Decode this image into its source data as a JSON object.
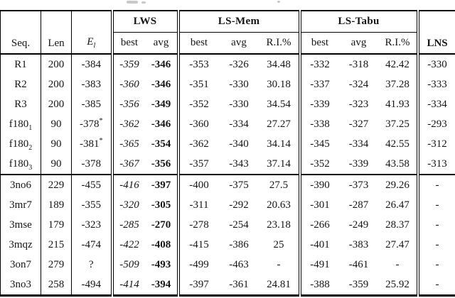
{
  "table": {
    "header": {
      "seq": "Seq.",
      "len": "Len",
      "energy_base": "E",
      "energy_sub": "l",
      "group_lws": "LWS",
      "group_ls_mem": "LS-Mem",
      "group_ls_tabu": "LS-Tabu",
      "lns": "LNS",
      "best": "best",
      "avg": "avg",
      "ri": "R.I.%"
    },
    "section_break_index": 6,
    "rows": [
      {
        "seq": "R1",
        "seq_sub": "",
        "len": "200",
        "el": "-384",
        "el_sup": "",
        "lws_best": "-359",
        "lws_avg": "-346",
        "mem_best": "-353",
        "mem_avg": "-326",
        "mem_ri": "34.48",
        "tabu_best": "-332",
        "tabu_avg": "-318",
        "tabu_ri": "42.42",
        "lns": "-330"
      },
      {
        "seq": "R2",
        "seq_sub": "",
        "len": "200",
        "el": "-383",
        "el_sup": "",
        "lws_best": "-360",
        "lws_avg": "-346",
        "mem_best": "-351",
        "mem_avg": "-330",
        "mem_ri": "30.18",
        "tabu_best": "-337",
        "tabu_avg": "-324",
        "tabu_ri": "37.28",
        "lns": "-333"
      },
      {
        "seq": "R3",
        "seq_sub": "",
        "len": "200",
        "el": "-385",
        "el_sup": "",
        "lws_best": "-356",
        "lws_avg": "-349",
        "mem_best": "-352",
        "mem_avg": "-330",
        "mem_ri": "34.54",
        "tabu_best": "-339",
        "tabu_avg": "-323",
        "tabu_ri": "41.93",
        "lns": "-334"
      },
      {
        "seq": "f180",
        "seq_sub": "1",
        "len": "90",
        "el": "-378",
        "el_sup": "*",
        "lws_best": "-362",
        "lws_avg": "-346",
        "mem_best": "-360",
        "mem_avg": "-334",
        "mem_ri": "27.27",
        "tabu_best": "-338",
        "tabu_avg": "-327",
        "tabu_ri": "37.25",
        "lns": "-293"
      },
      {
        "seq": "f180",
        "seq_sub": "2",
        "len": "90",
        "el": "-381",
        "el_sup": "*",
        "lws_best": "-365",
        "lws_avg": "-354",
        "mem_best": "-362",
        "mem_avg": "-340",
        "mem_ri": "34.14",
        "tabu_best": "-345",
        "tabu_avg": "-334",
        "tabu_ri": "42.55",
        "lns": "-312"
      },
      {
        "seq": "f180",
        "seq_sub": "3",
        "len": "90",
        "el": "-378",
        "el_sup": "",
        "lws_best": "-367",
        "lws_avg": "-356",
        "mem_best": "-357",
        "mem_avg": "-343",
        "mem_ri": "37.14",
        "tabu_best": "-352",
        "tabu_avg": "-339",
        "tabu_ri": "43.58",
        "lns": "-313"
      },
      {
        "seq": "3no6",
        "seq_sub": "",
        "len": "229",
        "el": "-455",
        "el_sup": "",
        "lws_best": "-416",
        "lws_avg": "-397",
        "mem_best": "-400",
        "mem_avg": "-375",
        "mem_ri": "27.5",
        "tabu_best": "-390",
        "tabu_avg": "-373",
        "tabu_ri": "29.26",
        "lns": "-"
      },
      {
        "seq": "3mr7",
        "seq_sub": "",
        "len": "189",
        "el": "-355",
        "el_sup": "",
        "lws_best": "-320",
        "lws_avg": "-305",
        "mem_best": "-311",
        "mem_avg": "-292",
        "mem_ri": "20.63",
        "tabu_best": "-301",
        "tabu_avg": "-287",
        "tabu_ri": "26.47",
        "lns": "-"
      },
      {
        "seq": "3mse",
        "seq_sub": "",
        "len": "179",
        "el": "-323",
        "el_sup": "",
        "lws_best": "-285",
        "lws_avg": "-270",
        "mem_best": "-278",
        "mem_avg": "-254",
        "mem_ri": "23.18",
        "tabu_best": "-266",
        "tabu_avg": "-249",
        "tabu_ri": "28.37",
        "lns": "-"
      },
      {
        "seq": "3mqz",
        "seq_sub": "",
        "len": "215",
        "el": "-474",
        "el_sup": "",
        "lws_best": "-422",
        "lws_avg": "-408",
        "mem_best": "-415",
        "mem_avg": "-386",
        "mem_ri": "25",
        "tabu_best": "-401",
        "tabu_avg": "-383",
        "tabu_ri": "27.47",
        "lns": "-"
      },
      {
        "seq": "3on7",
        "seq_sub": "",
        "len": "279",
        "el": "?",
        "el_sup": "",
        "lws_best": "-509",
        "lws_avg": "-493",
        "mem_best": "-499",
        "mem_avg": "-463",
        "mem_ri": "-",
        "tabu_best": "-491",
        "tabu_avg": "-461",
        "tabu_ri": "-",
        "lns": "-"
      },
      {
        "seq": "3no3",
        "seq_sub": "",
        "len": "258",
        "el": "-494",
        "el_sup": "",
        "lws_best": "-414",
        "lws_avg": "-394",
        "mem_best": "-397",
        "mem_avg": "-361",
        "mem_ri": "24.81",
        "tabu_best": "-388",
        "tabu_avg": "-359",
        "tabu_ri": "25.92",
        "lns": "-"
      }
    ]
  },
  "colors": {
    "text": "#151515",
    "rule": "#000000",
    "background": "#ffffff"
  }
}
